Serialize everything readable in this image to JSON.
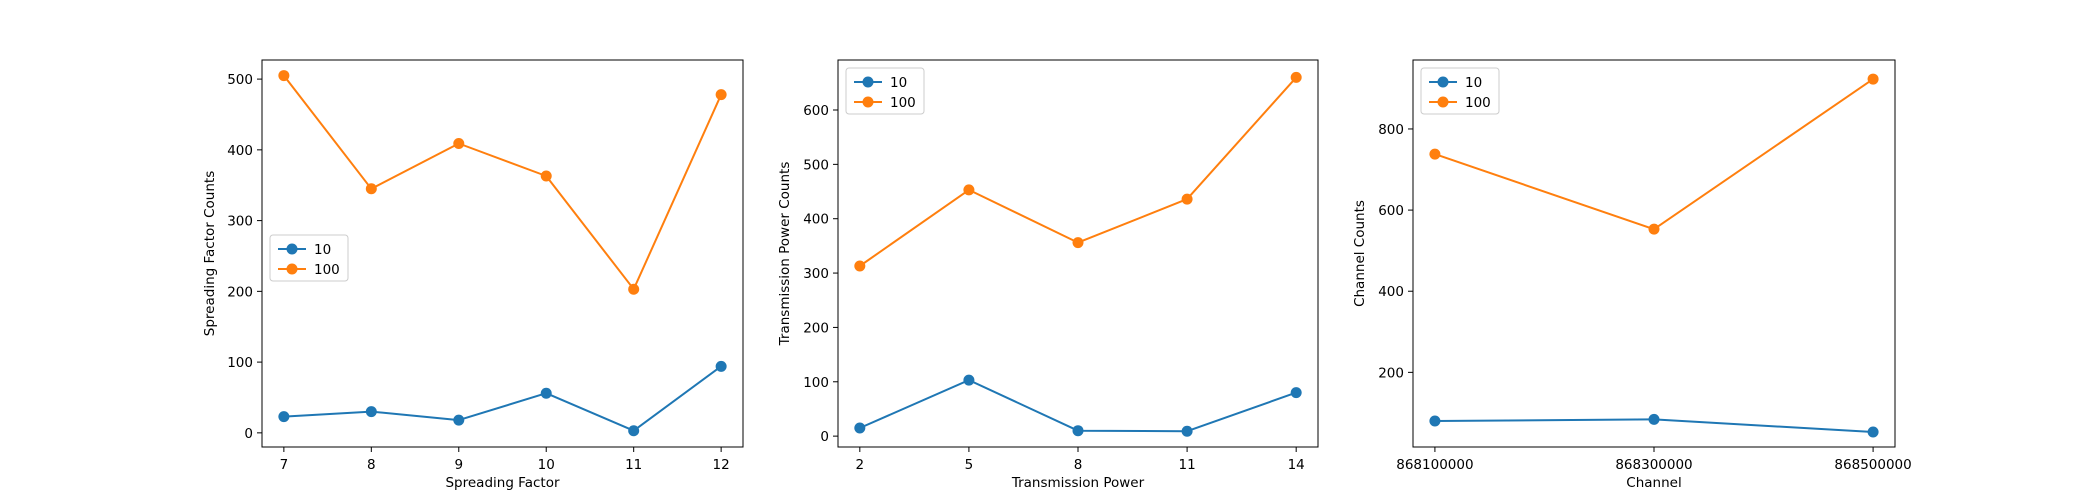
{
  "colors": {
    "series_0": "#1f77b4",
    "series_1": "#ff7f0e"
  },
  "chart_data": [
    {
      "type": "line",
      "xlabel": "Spreading Factor",
      "ylabel": "Spreading Factor Counts",
      "x": [
        7,
        8,
        9,
        10,
        11,
        12
      ],
      "xticks": [
        "7",
        "8",
        "9",
        "10",
        "11",
        "12"
      ],
      "yticks": [
        "0",
        "100",
        "200",
        "300",
        "400",
        "500"
      ],
      "xlim": [
        6.75,
        12.25
      ],
      "ylim": [
        -20,
        527
      ],
      "grid": false,
      "legend_position": "center-left",
      "series": [
        {
          "name": "10",
          "values": [
            23,
            30,
            18,
            56,
            3,
            94
          ]
        },
        {
          "name": "100",
          "values": [
            505,
            345,
            409,
            363,
            203,
            478
          ]
        }
      ]
    },
    {
      "type": "line",
      "xlabel": "Transmission Power",
      "ylabel": "Transmission Power Counts",
      "x": [
        2,
        5,
        8,
        11,
        14
      ],
      "xticks": [
        "2",
        "5",
        "8",
        "11",
        "14"
      ],
      "yticks": [
        "0",
        "100",
        "200",
        "300",
        "400",
        "500",
        "600"
      ],
      "xlim": [
        1.4,
        14.6
      ],
      "ylim": [
        -20,
        692
      ],
      "grid": false,
      "legend_position": "top-left",
      "series": [
        {
          "name": "10",
          "values": [
            15,
            103,
            10,
            9,
            80
          ]
        },
        {
          "name": "100",
          "values": [
            313,
            453,
            356,
            436,
            660
          ]
        }
      ]
    },
    {
      "type": "line",
      "xlabel": "Channel",
      "ylabel": "Channel Counts",
      "x": [
        868100000,
        868300000,
        868500000
      ],
      "xticks": [
        "868100000",
        "868300000",
        "868500000"
      ],
      "yticks": [
        "200",
        "400",
        "600",
        "800"
      ],
      "xlim": [
        868080000,
        868520000
      ],
      "ylim": [
        16,
        970
      ],
      "grid": false,
      "legend_position": "top-left",
      "series": [
        {
          "name": "10",
          "values": [
            80,
            84,
            53
          ]
        },
        {
          "name": "100",
          "values": [
            738,
            553,
            923
          ]
        }
      ]
    }
  ]
}
